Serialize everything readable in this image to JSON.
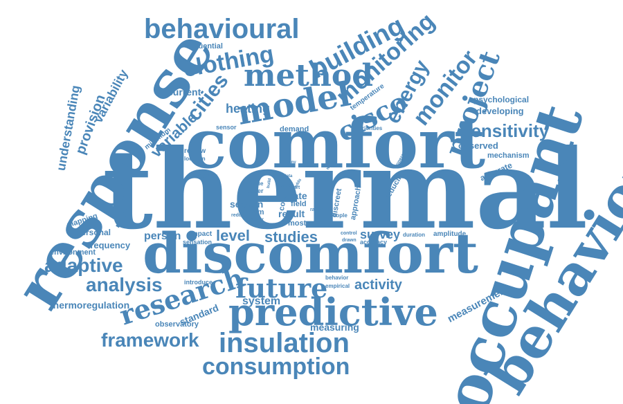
{
  "word_cloud": {
    "color": "#4a86b8",
    "background": "#ffffff",
    "words": [
      "thermal",
      "comfort",
      "discomfort",
      "response",
      "occupant",
      "behaviour",
      "predictive",
      "insulation",
      "consumption",
      "research",
      "future",
      "model",
      "method",
      "building",
      "monitoring",
      "behavioural",
      "clothing",
      "cities",
      "sensitivity",
      "project",
      "monitor",
      "analysis",
      "adaptive",
      "framework",
      "cisco",
      "energy",
      "studies",
      "level",
      "person",
      "survey",
      "activity",
      "measurement",
      "system",
      "standard",
      "variable",
      "provision",
      "understanding",
      "variability",
      "heating",
      "current",
      "influential",
      "thermoregulation",
      "frequency",
      "personal",
      "mapping",
      "environment",
      "observed",
      "developing",
      "psychological",
      "mechanism",
      "accurate",
      "measuring",
      "observatory",
      "season",
      "rate",
      "field",
      "result",
      "room",
      "most",
      "approach",
      "reducing",
      "temperature",
      "demand",
      "minimum",
      "sensor",
      "review",
      "location",
      "gather",
      "priorities",
      "introduce",
      "sensation",
      "impact",
      "amplitude",
      "duration",
      "accuracy",
      "behavior",
      "empirical",
      "control",
      "drawn",
      "discreet",
      "people",
      "paper",
      "issue",
      "operative",
      "cold",
      "study",
      "reduce",
      "type",
      "part",
      "range",
      "data",
      "warm",
      "state",
      "many",
      "build",
      "adds"
    ]
  }
}
